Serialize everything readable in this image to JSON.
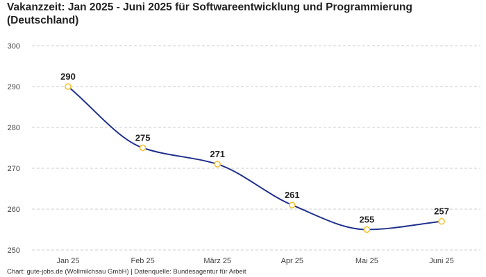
{
  "title": "Vakanzzeit: Jan 2025 - Juni 2025 für Softwareentwicklung und Programmierung (Deutschland)",
  "footer": "Chart: gute-jobs.de (Wollmilchsau GmbH) | Datenquelle: Bundesagentur für Arbeit",
  "colors": {
    "line": "#1f2f8c",
    "marker_stroke": "#f2c230",
    "marker_fill": "#ffffff",
    "grid": "#cccccc",
    "tick_text": "#444444",
    "label_text": "#222222"
  },
  "chart_data": {
    "type": "line",
    "categories": [
      "Jan 25",
      "Feb 25",
      "März 25",
      "Apr 25",
      "Mai 25",
      "Juni 25"
    ],
    "series": [
      {
        "values": [
          290,
          275,
          271,
          261,
          255,
          257
        ]
      }
    ],
    "ylim": [
      250,
      300
    ],
    "yticks": [
      250,
      260,
      270,
      280,
      290,
      300
    ],
    "grid": true,
    "grid_style": "dashed",
    "data_labels": true,
    "smooth": true,
    "xlabel": "",
    "ylabel": ""
  }
}
